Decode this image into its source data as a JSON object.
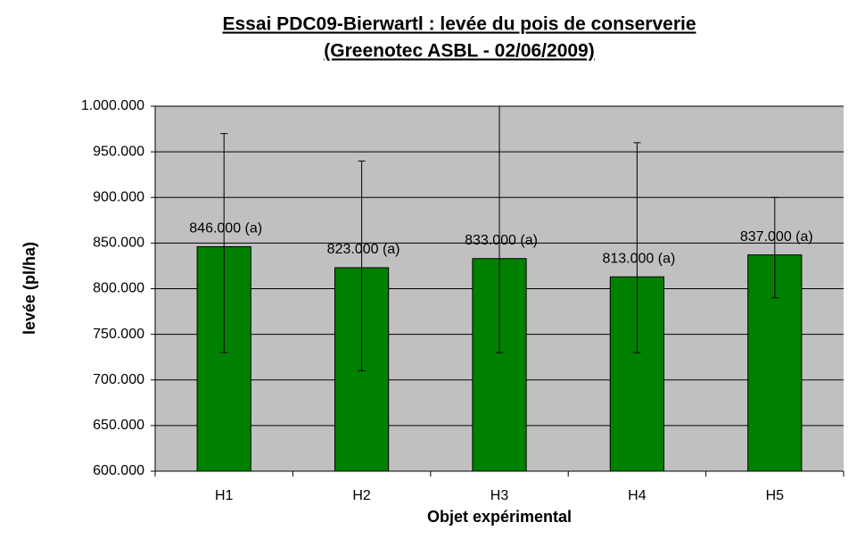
{
  "chart_data": {
    "type": "bar",
    "title": "Essai PDC09-Bierwartl : levée du pois de conserverie",
    "subtitle": "(Greenotec ASBL - 02/06/2009)",
    "x_label": "Objet expérimental",
    "y_label": "levée (pl/ha)",
    "categories": [
      "H1",
      "H2",
      "H3",
      "H4",
      "H5"
    ],
    "values": [
      846000,
      823000,
      833000,
      813000,
      837000
    ],
    "value_labels": [
      "846.000 (a)",
      "823.000 (a)",
      "833.000 (a)",
      "813.000 (a)",
      "837.000 (a)"
    ],
    "errors_minus": [
      116000,
      113000,
      103000,
      83000,
      47000
    ],
    "errors_plus": [
      124000,
      117000,
      167000,
      147000,
      63000
    ],
    "color": "#008000",
    "ylim": [
      600000,
      1000000
    ],
    "yticks": [
      {
        "value": 600000,
        "label": "600.000"
      },
      {
        "value": 650000,
        "label": "650.000"
      },
      {
        "value": 700000,
        "label": "700.000"
      },
      {
        "value": 750000,
        "label": "750.000"
      },
      {
        "value": 800000,
        "label": "800.000"
      },
      {
        "value": 850000,
        "label": "850.000"
      },
      {
        "value": 900000,
        "label": "900.000"
      },
      {
        "value": 950000,
        "label": "950.000"
      },
      {
        "value": 1000000,
        "label": "1.000.000"
      }
    ],
    "grid": true
  }
}
